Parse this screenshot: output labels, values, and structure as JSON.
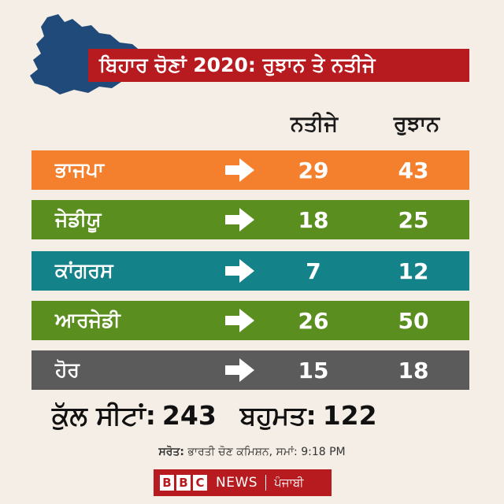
{
  "title": "ਬਿਹਾਰ ਚੋਣਾਂ 2020: ਰੁਝਾਨ ਤੇ ਨਤੀਜੇ",
  "columns": {
    "results": "ਨਤੀਜੇ",
    "trends": "ਰੁਝਾਨ"
  },
  "rows": [
    {
      "party": "ਭਾਜਪਾ",
      "results": "29",
      "trends": "43",
      "color": "#f47f2d"
    },
    {
      "party": "ਜੇਡੀਯੂ",
      "results": "18",
      "trends": "25",
      "color": "#5a8f1f"
    },
    {
      "party": "ਕਾਂਗਰਸ",
      "results": "7",
      "trends": "12",
      "color": "#148289"
    },
    {
      "party": "ਆਰਜੇਡੀ",
      "results": "26",
      "trends": "50",
      "color": "#5a8f1f"
    },
    {
      "party": "ਹੋਰ",
      "results": "15",
      "trends": "18",
      "color": "#5b5b5b"
    }
  ],
  "totals": {
    "total_seats_label": "ਕੁੱਲ ਸੀਟਾਂ:",
    "total_seats": "243",
    "majority_label": "ਬਹੁਮਤ:",
    "majority": "122"
  },
  "source": {
    "label": "ਸਰੋਤ:",
    "text": "ਭਾਰਤੀ ਚੋਣ ਕਮਿਸ਼ਨ, ਸਮਾਂ: 9:18 PM"
  },
  "logo": {
    "b1": "B",
    "b2": "B",
    "b3": "C",
    "news": "NEWS",
    "lang": "ਪੰਜਾਬੀ"
  },
  "colors": {
    "background": "#f5eee6",
    "accent": "#b81b1f",
    "map": "#1f4a7a"
  }
}
